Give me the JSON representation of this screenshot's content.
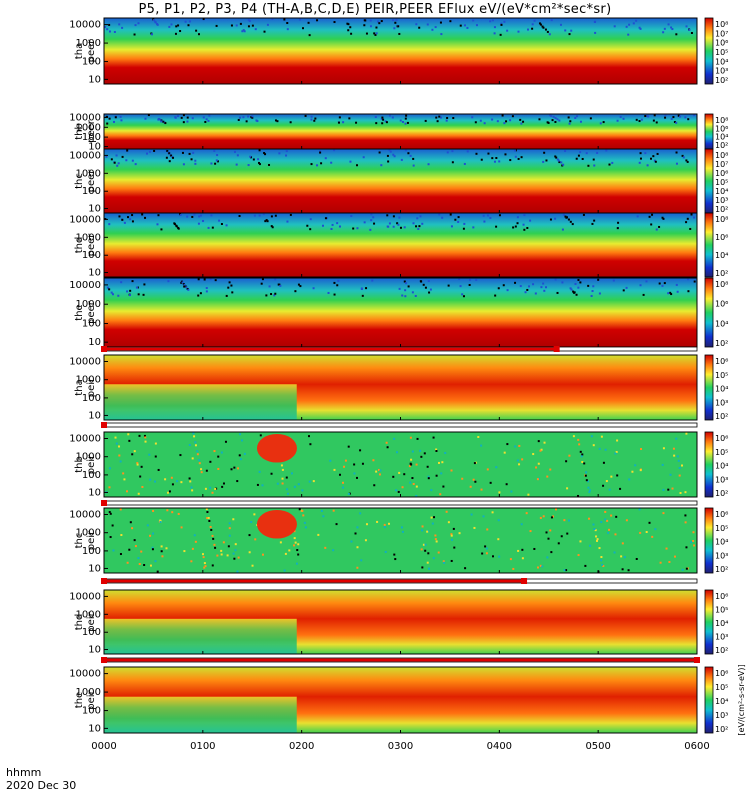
{
  "title": "P5, P1, P2, P3, P4 (TH-A,B,C,D,E) PEIR,PEER EFlux eV/(eV*cm²*sec*sr)",
  "footer": {
    "hhmm": "hhmm",
    "date": "2020 Dec 30"
  },
  "colorbar_label": "[eV/(cm²-s-sr-eV)]",
  "colors": {
    "low": "#1030d0",
    "mid": "#20d060",
    "high": "#ffee30",
    "max": "#d00000"
  },
  "chart_data": {
    "type": "heatmap",
    "x_ticks": [
      "0000",
      "0100",
      "0200",
      "0300",
      "0400",
      "0500",
      "0600"
    ],
    "x_range_hours": [
      0,
      6
    ],
    "panels": [
      {
        "name": "tha peer",
        "y_ticks": [
          "10000",
          "1000",
          "100",
          "10"
        ],
        "colorbar_ticks": [
          "10⁸",
          "10⁷",
          "10⁶",
          "10⁵",
          "10⁴",
          "10³",
          "10²"
        ]
      },
      {
        "name": "thb peer",
        "y_ticks": [
          "10000",
          "1000",
          "100",
          "10"
        ],
        "colorbar_ticks": [
          "10⁸",
          "10⁶",
          "10⁴",
          "10²"
        ]
      },
      {
        "name": "thc peer",
        "y_ticks": [
          "10000",
          "1000",
          "100",
          "10"
        ],
        "colorbar_ticks": [
          "10⁸",
          "10⁷",
          "10⁶",
          "10⁵",
          "10⁴",
          "10³",
          "10²"
        ]
      },
      {
        "name": "thd peer",
        "y_ticks": [
          "10000",
          "1000",
          "100",
          "10"
        ],
        "colorbar_ticks": [
          "10⁸",
          "10⁶",
          "10⁴",
          "10²"
        ]
      },
      {
        "name": "the peer",
        "y_ticks": [
          "10000",
          "1000",
          "100",
          "10"
        ],
        "colorbar_ticks": [
          "10⁸",
          "10⁶",
          "10⁴",
          "10²"
        ]
      },
      {
        "name": "tha peir",
        "y_ticks": [
          "10000",
          "1000",
          "100",
          "10"
        ],
        "colorbar_ticks": [
          "10⁶",
          "10⁵",
          "10⁴",
          "10³",
          "10²"
        ]
      },
      {
        "name": "thb peir",
        "y_ticks": [
          "10000",
          "1000",
          "100",
          "10"
        ],
        "colorbar_ticks": [
          "10⁶",
          "10⁵",
          "10⁴",
          "10³",
          "10²"
        ]
      },
      {
        "name": "thc peir",
        "y_ticks": [
          "10000",
          "1000",
          "100",
          "10"
        ],
        "colorbar_ticks": [
          "10⁶",
          "10⁵",
          "10⁴",
          "10³",
          "10²"
        ]
      },
      {
        "name": "thd peir",
        "y_ticks": [
          "10000",
          "1000",
          "100",
          "10"
        ],
        "colorbar_ticks": [
          "10⁶",
          "10⁵",
          "10⁴",
          "10³",
          "10²"
        ]
      },
      {
        "name": "the peir",
        "y_ticks": [
          "10000",
          "1000",
          "100",
          "10"
        ],
        "colorbar_ticks": [
          "10⁶",
          "10⁵",
          "10⁴",
          "10³",
          "10²"
        ]
      }
    ],
    "mode_bars_hours": [
      [
        0,
        4.58
      ],
      [
        0,
        0.0
      ],
      [
        0,
        4.25
      ],
      [
        0,
        6.0
      ]
    ]
  }
}
